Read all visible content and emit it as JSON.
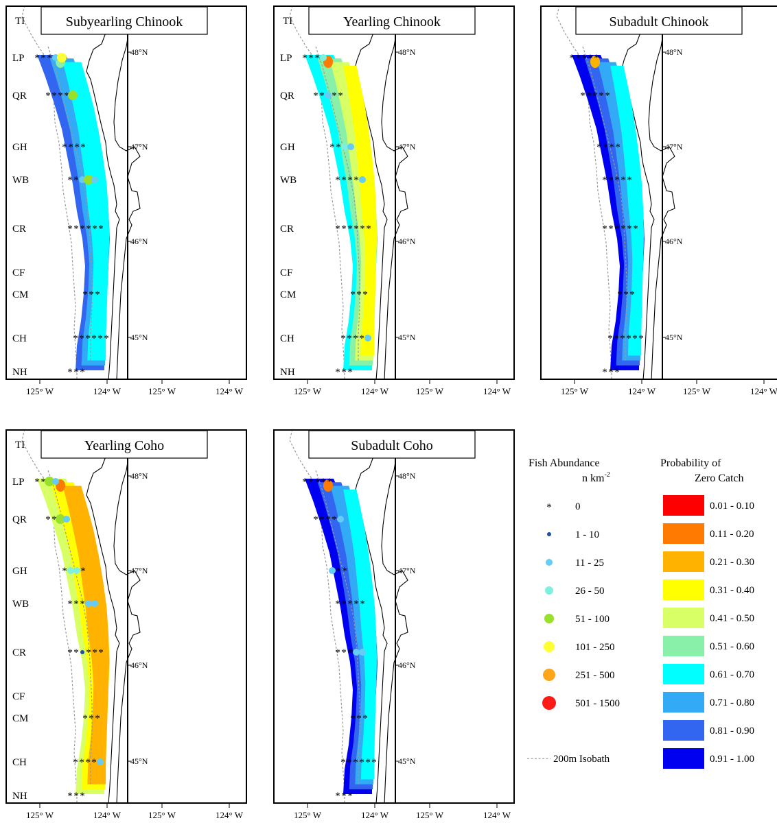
{
  "panels": [
    {
      "title": "Subyearling Chinook",
      "site_labels": [
        "TI",
        "LP",
        "QR",
        "GH",
        "WB",
        "CR",
        "CF",
        "CM",
        "CH",
        "NH"
      ],
      "station_catch": [
        {
          "site": "LP",
          "classes": [
            "0",
            "0",
            "0",
            "11 - 25",
            "101 - 250"
          ]
        },
        {
          "site": "QR",
          "classes": [
            "0",
            "0",
            "0",
            "0",
            "51 - 100"
          ]
        },
        {
          "site": "GH",
          "classes": [
            "0",
            "0",
            "0",
            "0"
          ]
        },
        {
          "site": "WB",
          "classes": [
            "0",
            "0",
            "11 - 25",
            "51 - 100",
            "11 - 25"
          ]
        },
        {
          "site": "CR",
          "classes": [
            "0",
            "0",
            "0",
            "0",
            "0",
            "0"
          ]
        },
        {
          "site": "CM",
          "classes": [
            "0",
            "0",
            "0"
          ]
        },
        {
          "site": "CH",
          "classes": [
            "0",
            "0",
            "0",
            "0",
            "0",
            "0"
          ]
        },
        {
          "site": "NH",
          "classes": [
            "0",
            "0",
            "0"
          ]
        }
      ],
      "zero_catch_classes": [
        "0.81 - 0.90",
        "0.71 - 0.80",
        "0.61 - 0.70"
      ],
      "hotspot_class": "0.51 - 0.60"
    },
    {
      "title": "Yearling Chinook",
      "site_labels": [
        "TI",
        "LP",
        "QR",
        "GH",
        "WB",
        "CR",
        "CF",
        "CM",
        "CH",
        "NH"
      ],
      "station_catch": [
        {
          "site": "LP",
          "classes": [
            "0",
            "0",
            "0",
            "26 - 50"
          ]
        },
        {
          "site": "QR",
          "classes": [
            "0",
            "0",
            "11 - 25",
            "0",
            "0"
          ]
        },
        {
          "site": "GH",
          "classes": [
            "0",
            "0",
            "26 - 50",
            "11 - 25"
          ]
        },
        {
          "site": "WB",
          "classes": [
            "0",
            "0",
            "0",
            "0",
            "11 - 25"
          ]
        },
        {
          "site": "CR",
          "classes": [
            "0",
            "0",
            "0",
            "0",
            "0",
            "0"
          ]
        },
        {
          "site": "CM",
          "classes": [
            "0",
            "0",
            "0"
          ]
        },
        {
          "site": "CH",
          "classes": [
            "0",
            "0",
            "0",
            "0",
            "11 - 25"
          ]
        },
        {
          "site": "NH",
          "classes": [
            "0",
            "0",
            "0"
          ]
        }
      ],
      "zero_catch_classes": [
        "0.61 - 0.70",
        "0.51 - 0.60",
        "0.41 - 0.50",
        "0.31 - 0.40"
      ],
      "hotspot_class": "0.11 - 0.20"
    },
    {
      "title": "Subadult Chinook",
      "site_labels": [],
      "station_catch": [
        {
          "site": "LP",
          "classes": [
            "0",
            "0",
            "0",
            "0",
            "0"
          ]
        },
        {
          "site": "QR",
          "classes": [
            "0",
            "0",
            "0",
            "0",
            "0"
          ]
        },
        {
          "site": "GH",
          "classes": [
            "0",
            "0",
            "0",
            "0"
          ]
        },
        {
          "site": "WB",
          "classes": [
            "0",
            "0",
            "0",
            "0",
            "0"
          ]
        },
        {
          "site": "CR",
          "classes": [
            "0",
            "0",
            "0",
            "0",
            "0",
            "0"
          ]
        },
        {
          "site": "CM",
          "classes": [
            "0",
            "0",
            "0"
          ]
        },
        {
          "site": "CH",
          "classes": [
            "0",
            "0",
            "0",
            "0",
            "0",
            "0"
          ]
        },
        {
          "site": "NH",
          "classes": [
            "0",
            "0",
            "0"
          ]
        }
      ],
      "zero_catch_classes": [
        "0.91 - 1.00",
        "0.81 - 0.90",
        "0.71 - 0.80",
        "0.61 - 0.70"
      ],
      "hotspot_class": "0.21 - 0.30"
    },
    {
      "title": "Yearling Coho",
      "site_labels": [
        "TI",
        "LP",
        "QR",
        "GH",
        "WB",
        "CR",
        "CF",
        "CM",
        "CH",
        "NH"
      ],
      "station_catch": [
        {
          "site": "LP",
          "classes": [
            "0",
            "0",
            "51 - 100",
            "11 - 25"
          ]
        },
        {
          "site": "QR",
          "classes": [
            "0",
            "0",
            "51 - 100",
            "11 - 25"
          ]
        },
        {
          "site": "GH",
          "classes": [
            "0",
            "26 - 50",
            "26 - 50",
            "0"
          ]
        },
        {
          "site": "WB",
          "classes": [
            "0",
            "0",
            "0",
            "11 - 25",
            "11 - 25"
          ]
        },
        {
          "site": "CR",
          "classes": [
            "0",
            "0",
            "1 - 10",
            "0",
            "0",
            "0"
          ]
        },
        {
          "site": "CM",
          "classes": [
            "0",
            "0",
            "0"
          ]
        },
        {
          "site": "CH",
          "classes": [
            "0",
            "0",
            "0",
            "0",
            "11 - 25"
          ]
        },
        {
          "site": "NH",
          "classes": [
            "0",
            "0",
            "0"
          ]
        }
      ],
      "zero_catch_classes": [
        "0.41 - 0.50",
        "0.31 - 0.40",
        "0.21 - 0.30"
      ],
      "hotspot_class": "0.11 - 0.20"
    },
    {
      "title": "Subadult Coho",
      "site_labels": [],
      "station_catch": [
        {
          "site": "LP",
          "classes": [
            "0",
            "0",
            "0",
            "0",
            "0"
          ]
        },
        {
          "site": "QR",
          "classes": [
            "0",
            "0",
            "0",
            "0",
            "11 - 25"
          ]
        },
        {
          "site": "GH",
          "classes": [
            "11 - 25",
            "0",
            "0"
          ]
        },
        {
          "site": "WB",
          "classes": [
            "0",
            "0",
            "0",
            "0",
            "0"
          ]
        },
        {
          "site": "CR",
          "classes": [
            "0",
            "0",
            "0",
            "11 - 25",
            "11 - 25"
          ]
        },
        {
          "site": "CM",
          "classes": [
            "0",
            "0",
            "0"
          ]
        },
        {
          "site": "CH",
          "classes": [
            "0",
            "0",
            "0",
            "0",
            "0",
            "0"
          ]
        },
        {
          "site": "NH",
          "classes": [
            "0",
            "0",
            "0"
          ]
        }
      ],
      "zero_catch_classes": [
        "0.91 - 1.00",
        "0.81 - 0.90",
        "0.71 - 0.80",
        "0.61 - 0.70"
      ],
      "hotspot_class": "0.11 - 0.20"
    }
  ],
  "axes": {
    "lon_ticks": [
      "125° W",
      "124° W"
    ],
    "lat_ticks": [
      "48°N",
      "47°N",
      "46°N",
      "45°N"
    ]
  },
  "legend": {
    "abundance_title": "Fish Abundance",
    "abundance_unit": "n km",
    "abundance_unit_exp": "-2",
    "abundance_classes": [
      {
        "label": "0",
        "symbol": "star",
        "color": "#000000"
      },
      {
        "label": "1 - 10",
        "symbol": "dot",
        "color": "#1f4fa3"
      },
      {
        "label": "11 - 25",
        "symbol": "dot",
        "color": "#66ccf5"
      },
      {
        "label": "26 - 50",
        "symbol": "dot",
        "color": "#7ff0dc"
      },
      {
        "label": "51 - 100",
        "symbol": "dot",
        "color": "#99e02a"
      },
      {
        "label": "101 - 250",
        "symbol": "dot",
        "color": "#ffff33"
      },
      {
        "label": "251 - 500",
        "symbol": "dot",
        "color": "#ffa51a"
      },
      {
        "label": "501 - 1500",
        "symbol": "dot",
        "color": "#ff1a1a"
      }
    ],
    "probability_title_1": "Probability of",
    "probability_title_2": "Zero Catch",
    "probability_classes": [
      {
        "label": "0.01 - 0.10",
        "color": "#ff0000"
      },
      {
        "label": "0.11 - 0.20",
        "color": "#ff7a00"
      },
      {
        "label": "0.21 - 0.30",
        "color": "#ffb300"
      },
      {
        "label": "0.31 - 0.40",
        "color": "#ffff00"
      },
      {
        "label": "0.41 - 0.50",
        "color": "#d9ff66"
      },
      {
        "label": "0.51 - 0.60",
        "color": "#88f0a8"
      },
      {
        "label": "0.61 - 0.70",
        "color": "#00ffff"
      },
      {
        "label": "0.71 - 0.80",
        "color": "#33aaf5"
      },
      {
        "label": "0.81 - 0.90",
        "color": "#3366f0"
      },
      {
        "label": "0.91 - 1.00",
        "color": "#0000f0"
      }
    ],
    "isobath_label": "200m Isobath"
  }
}
